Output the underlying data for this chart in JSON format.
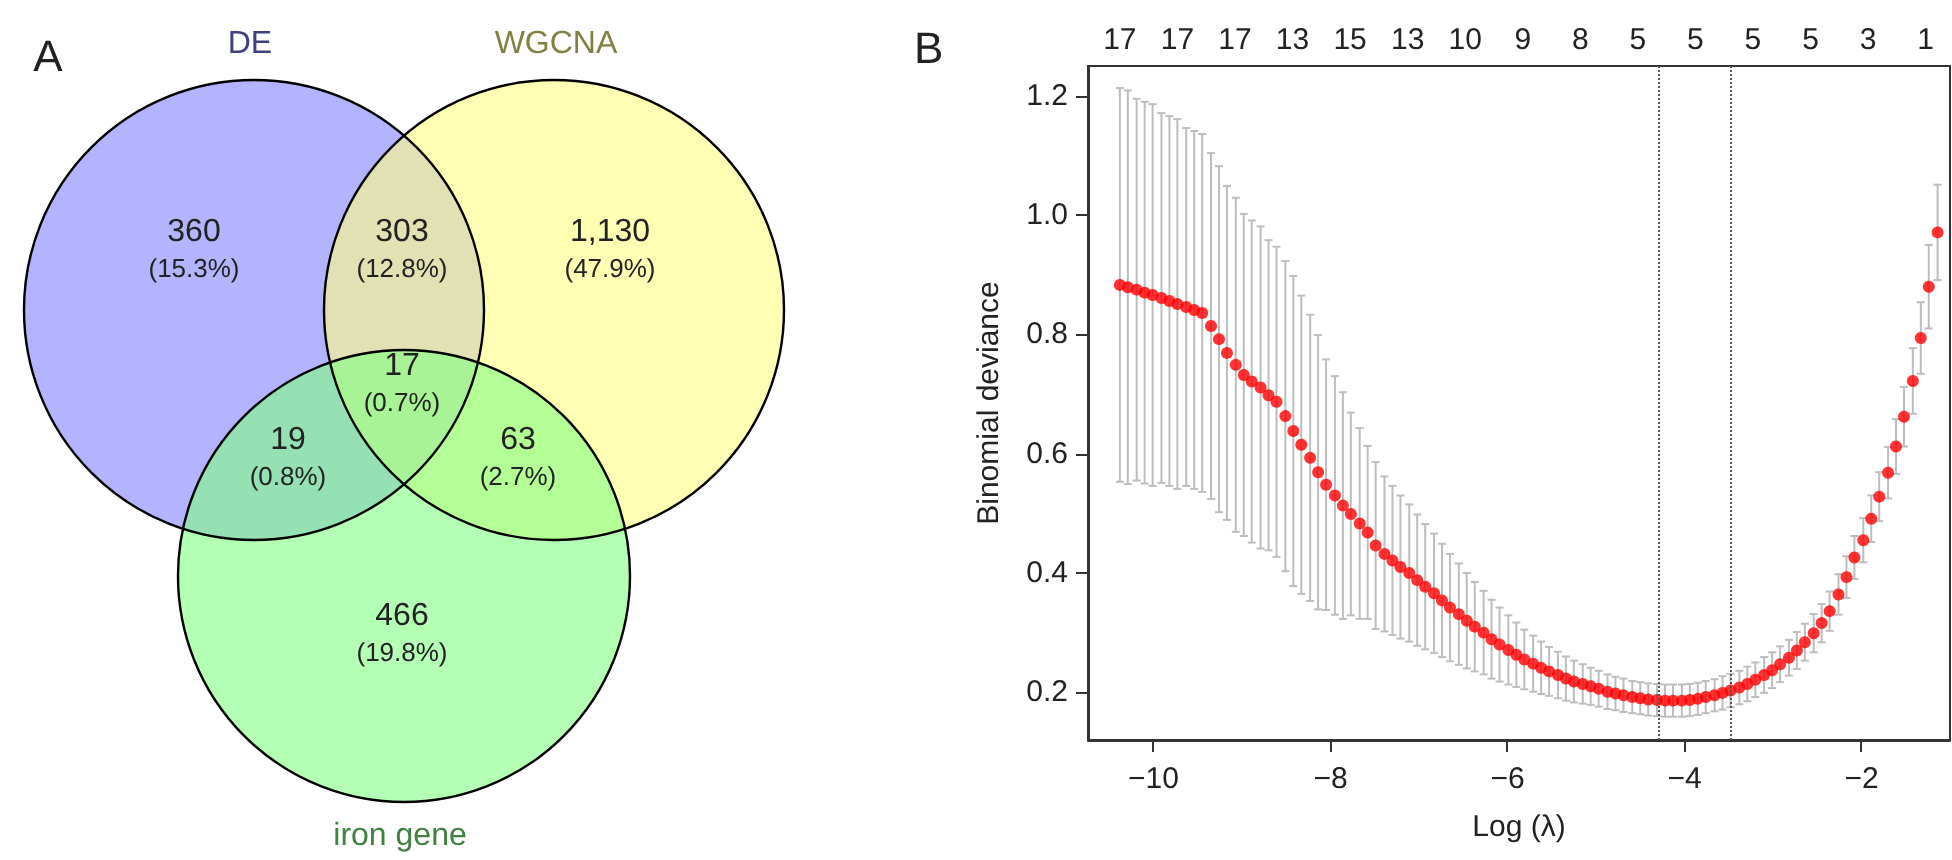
{
  "chart_data": [
    {
      "type": "other",
      "title": "A",
      "categories": [
        "DE",
        "WGCNA",
        "iron gene"
      ],
      "colors": [
        "#8080ff",
        "#ffff80",
        "#80ff80"
      ],
      "annotations": [
        "360\n(15.3%)",
        "303\n(12.8%)",
        "1,130\n(47.9%)",
        "19\n(0.8%)",
        "17\n(0.7%)",
        "63\n(2.7%)",
        "466\n(19.8%)"
      ]
    },
    {
      "type": "scatter",
      "title": "B",
      "xlabel": "Log (λ)",
      "ylabel": "Binomial deviance",
      "marker": "circle",
      "series": [
        {
          "color": "#ff0000",
          "x": [
            -10.38,
            -10.29,
            -10.19,
            -10.1,
            -10.01,
            -9.91,
            -9.82,
            -9.73,
            -9.63,
            -9.54,
            -9.45,
            -9.35,
            -9.26,
            -9.17,
            -9.07,
            -8.98,
            -8.89,
            -8.79,
            -8.7,
            -8.61,
            -8.51,
            -8.42,
            -8.33,
            -8.23,
            -8.14,
            -8.05,
            -7.95,
            -7.86,
            -7.77,
            -7.67,
            -7.58,
            -7.49,
            -7.39,
            -7.3,
            -7.21,
            -7.11,
            -7.02,
            -6.93,
            -6.83,
            -6.74,
            -6.65,
            -6.55,
            -6.46,
            -6.37,
            -6.27,
            -6.18,
            -6.09,
            -5.99,
            -5.9,
            -5.81,
            -5.71,
            -5.62,
            -5.53,
            -5.43,
            -5.34,
            -5.25,
            -5.15,
            -5.06,
            -4.97,
            -4.87,
            -4.78,
            -4.69,
            -4.59,
            -4.5,
            -4.41,
            -4.31,
            -4.22,
            -4.13,
            -4.03,
            -3.94,
            -3.85,
            -3.76,
            -3.66,
            -3.57,
            -3.48,
            -3.38,
            -3.29,
            -3.2,
            -3.1,
            -3.01,
            -2.92,
            -2.82,
            -2.73,
            -2.64,
            -2.54,
            -2.45,
            -2.36,
            -2.26,
            -2.17,
            -2.08,
            -1.98,
            -1.89,
            -1.8,
            -1.7,
            -1.61,
            -1.52,
            -1.42,
            -1.33,
            -1.24,
            -1.14
          ],
          "values": [
            0.883,
            0.879,
            0.875,
            0.87,
            0.866,
            0.861,
            0.856,
            0.851,
            0.846,
            0.841,
            0.836,
            0.814,
            0.792,
            0.769,
            0.749,
            0.732,
            0.721,
            0.711,
            0.698,
            0.687,
            0.663,
            0.638,
            0.615,
            0.593,
            0.569,
            0.548,
            0.53,
            0.513,
            0.499,
            0.483,
            0.468,
            0.446,
            0.432,
            0.421,
            0.41,
            0.4,
            0.388,
            0.377,
            0.366,
            0.354,
            0.342,
            0.331,
            0.32,
            0.31,
            0.3,
            0.289,
            0.28,
            0.271,
            0.263,
            0.255,
            0.248,
            0.241,
            0.235,
            0.229,
            0.223,
            0.218,
            0.214,
            0.21,
            0.206,
            0.201,
            0.198,
            0.195,
            0.192,
            0.19,
            0.188,
            0.187,
            0.186,
            0.186,
            0.186,
            0.187,
            0.189,
            0.192,
            0.195,
            0.199,
            0.203,
            0.208,
            0.214,
            0.221,
            0.229,
            0.237,
            0.247,
            0.258,
            0.27,
            0.284,
            0.299,
            0.316,
            0.336,
            0.364,
            0.393,
            0.426,
            0.455,
            0.491,
            0.528,
            0.568,
            0.612,
            0.662,
            0.722,
            0.794,
            0.88,
            0.971
          ],
          "errors": [
            0.33,
            0.33,
            0.32,
            0.32,
            0.32,
            0.31,
            0.31,
            0.31,
            0.3,
            0.3,
            0.3,
            0.29,
            0.29,
            0.28,
            0.28,
            0.27,
            0.27,
            0.27,
            0.26,
            0.26,
            0.26,
            0.26,
            0.25,
            0.24,
            0.23,
            0.21,
            0.2,
            0.19,
            0.17,
            0.16,
            0.145,
            0.14,
            0.13,
            0.125,
            0.12,
            0.115,
            0.11,
            0.105,
            0.1,
            0.095,
            0.09,
            0.085,
            0.08,
            0.075,
            0.07,
            0.066,
            0.062,
            0.058,
            0.054,
            0.05,
            0.047,
            0.044,
            0.041,
            0.039,
            0.037,
            0.035,
            0.033,
            0.031,
            0.03,
            0.029,
            0.028,
            0.028,
            0.027,
            0.027,
            0.027,
            0.027,
            0.027,
            0.027,
            0.027,
            0.027,
            0.027,
            0.027,
            0.027,
            0.028,
            0.028,
            0.028,
            0.029,
            0.029,
            0.03,
            0.03,
            0.03,
            0.03,
            0.031,
            0.031,
            0.032,
            0.032,
            0.033,
            0.034,
            0.035,
            0.036,
            0.037,
            0.039,
            0.041,
            0.043,
            0.046,
            0.05,
            0.055,
            0.06,
            0.07,
            0.08
          ]
        }
      ],
      "xlim": [
        -10.74,
        -1.0
      ],
      "xticks": [
        {
          "value": -10,
          "label": "−10"
        },
        {
          "value": -8,
          "label": "−8"
        },
        {
          "value": -6,
          "label": "−6"
        },
        {
          "value": -4,
          "label": "−4"
        },
        {
          "value": -2,
          "label": "−2"
        }
      ],
      "ylim": [
        0.12,
        1.25
      ],
      "yticks": [
        {
          "value": 0.2,
          "label": "0.2"
        },
        {
          "value": 0.4,
          "label": "0.4"
        },
        {
          "value": 0.6,
          "label": "0.6"
        },
        {
          "value": 0.8,
          "label": "0.8"
        },
        {
          "value": 1.0,
          "label": "1.0"
        },
        {
          "value": 1.2,
          "label": "1.2"
        }
      ],
      "annotations": [
        "17",
        "17",
        "17",
        "13",
        "15",
        "13",
        "10",
        "9",
        "8",
        "5",
        "5",
        "5",
        "5",
        "3",
        "1"
      ],
      "ref_lines": [
        {
          "axis": "x",
          "value": -4.3,
          "color": "#555555",
          "line_style": "dotted"
        },
        {
          "axis": "x",
          "value": -3.47,
          "color": "#555555",
          "line_style": "dotted"
        }
      ]
    }
  ]
}
